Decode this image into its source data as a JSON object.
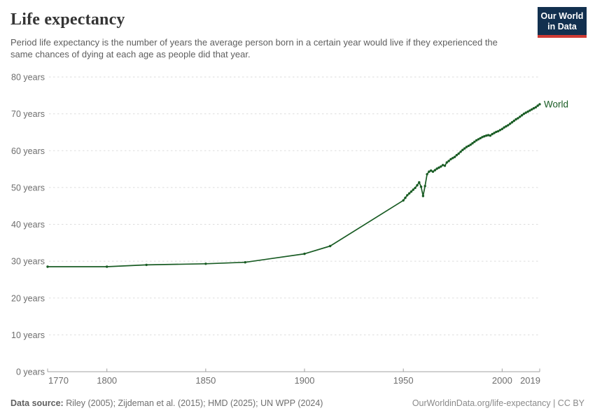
{
  "header": {
    "title": "Life expectancy",
    "subtitle": "Period life expectancy is the number of years the average person born in a certain year would live if they experienced the same chances of dying at each age as people did that year.",
    "logo": {
      "line1": "Our World",
      "line2": "in Data",
      "bg_color": "#12304f",
      "accent_color": "#cf3a34"
    }
  },
  "chart_data": {
    "type": "line",
    "title": "Life expectancy",
    "xlabel": "",
    "ylabel": "",
    "xlim": [
      1770,
      2019
    ],
    "ylim": [
      0,
      80
    ],
    "x_ticks": [
      1770,
      1800,
      1850,
      1900,
      1950,
      2000,
      2019
    ],
    "y_ticks": [
      0,
      10,
      20,
      30,
      40,
      50,
      60,
      70,
      80
    ],
    "y_tick_suffix": " years",
    "grid": "dashed-horizontal",
    "axis_color": "#a0a0a0",
    "grid_color": "#dddddd",
    "tick_label_color": "#6e6e6e",
    "series": [
      {
        "name": "World",
        "color": "#195c24",
        "points": [
          [
            1770,
            28.5
          ],
          [
            1800,
            28.5
          ],
          [
            1820,
            29.0
          ],
          [
            1850,
            29.3
          ],
          [
            1870,
            29.7
          ],
          [
            1900,
            32.0
          ],
          [
            1913,
            34.1
          ],
          [
            1950,
            46.5
          ],
          [
            1951,
            47.2
          ],
          [
            1952,
            47.9
          ],
          [
            1953,
            48.4
          ],
          [
            1954,
            48.9
          ],
          [
            1955,
            49.4
          ],
          [
            1956,
            49.9
          ],
          [
            1957,
            50.6
          ],
          [
            1958,
            51.4
          ],
          [
            1959,
            50.2
          ],
          [
            1960,
            47.7
          ],
          [
            1961,
            50.4
          ],
          [
            1962,
            53.6
          ],
          [
            1963,
            54.3
          ],
          [
            1964,
            54.6
          ],
          [
            1965,
            54.3
          ],
          [
            1966,
            54.7
          ],
          [
            1967,
            55.1
          ],
          [
            1968,
            55.4
          ],
          [
            1969,
            55.7
          ],
          [
            1970,
            56.1
          ],
          [
            1971,
            55.9
          ],
          [
            1972,
            56.8
          ],
          [
            1973,
            57.2
          ],
          [
            1974,
            57.7
          ],
          [
            1975,
            58.0
          ],
          [
            1976,
            58.3
          ],
          [
            1977,
            58.8
          ],
          [
            1978,
            59.2
          ],
          [
            1979,
            59.7
          ],
          [
            1980,
            60.2
          ],
          [
            1981,
            60.6
          ],
          [
            1982,
            61.0
          ],
          [
            1983,
            61.3
          ],
          [
            1984,
            61.6
          ],
          [
            1985,
            62.0
          ],
          [
            1986,
            62.4
          ],
          [
            1987,
            62.8
          ],
          [
            1988,
            63.1
          ],
          [
            1989,
            63.4
          ],
          [
            1990,
            63.7
          ],
          [
            1991,
            63.9
          ],
          [
            1992,
            64.1
          ],
          [
            1993,
            64.2
          ],
          [
            1994,
            64.1
          ],
          [
            1995,
            64.5
          ],
          [
            1996,
            64.8
          ],
          [
            1997,
            65.1
          ],
          [
            1998,
            65.3
          ],
          [
            1999,
            65.6
          ],
          [
            2000,
            65.9
          ],
          [
            2001,
            66.3
          ],
          [
            2002,
            66.6
          ],
          [
            2003,
            66.9
          ],
          [
            2004,
            67.3
          ],
          [
            2005,
            67.7
          ],
          [
            2006,
            68.1
          ],
          [
            2007,
            68.5
          ],
          [
            2008,
            68.8
          ],
          [
            2009,
            69.2
          ],
          [
            2010,
            69.6
          ],
          [
            2011,
            70.0
          ],
          [
            2012,
            70.3
          ],
          [
            2013,
            70.6
          ],
          [
            2014,
            70.9
          ],
          [
            2015,
            71.2
          ],
          [
            2016,
            71.5
          ],
          [
            2017,
            71.8
          ],
          [
            2018,
            72.2
          ],
          [
            2019,
            72.6
          ]
        ]
      }
    ]
  },
  "footer": {
    "source_label": "Data source:",
    "source_text": " Riley (2005); Zijdeman et al. (2015); HMD (2025); UN WPP (2024)",
    "link_text": "OurWorldinData.org/life-expectancy | CC BY"
  }
}
